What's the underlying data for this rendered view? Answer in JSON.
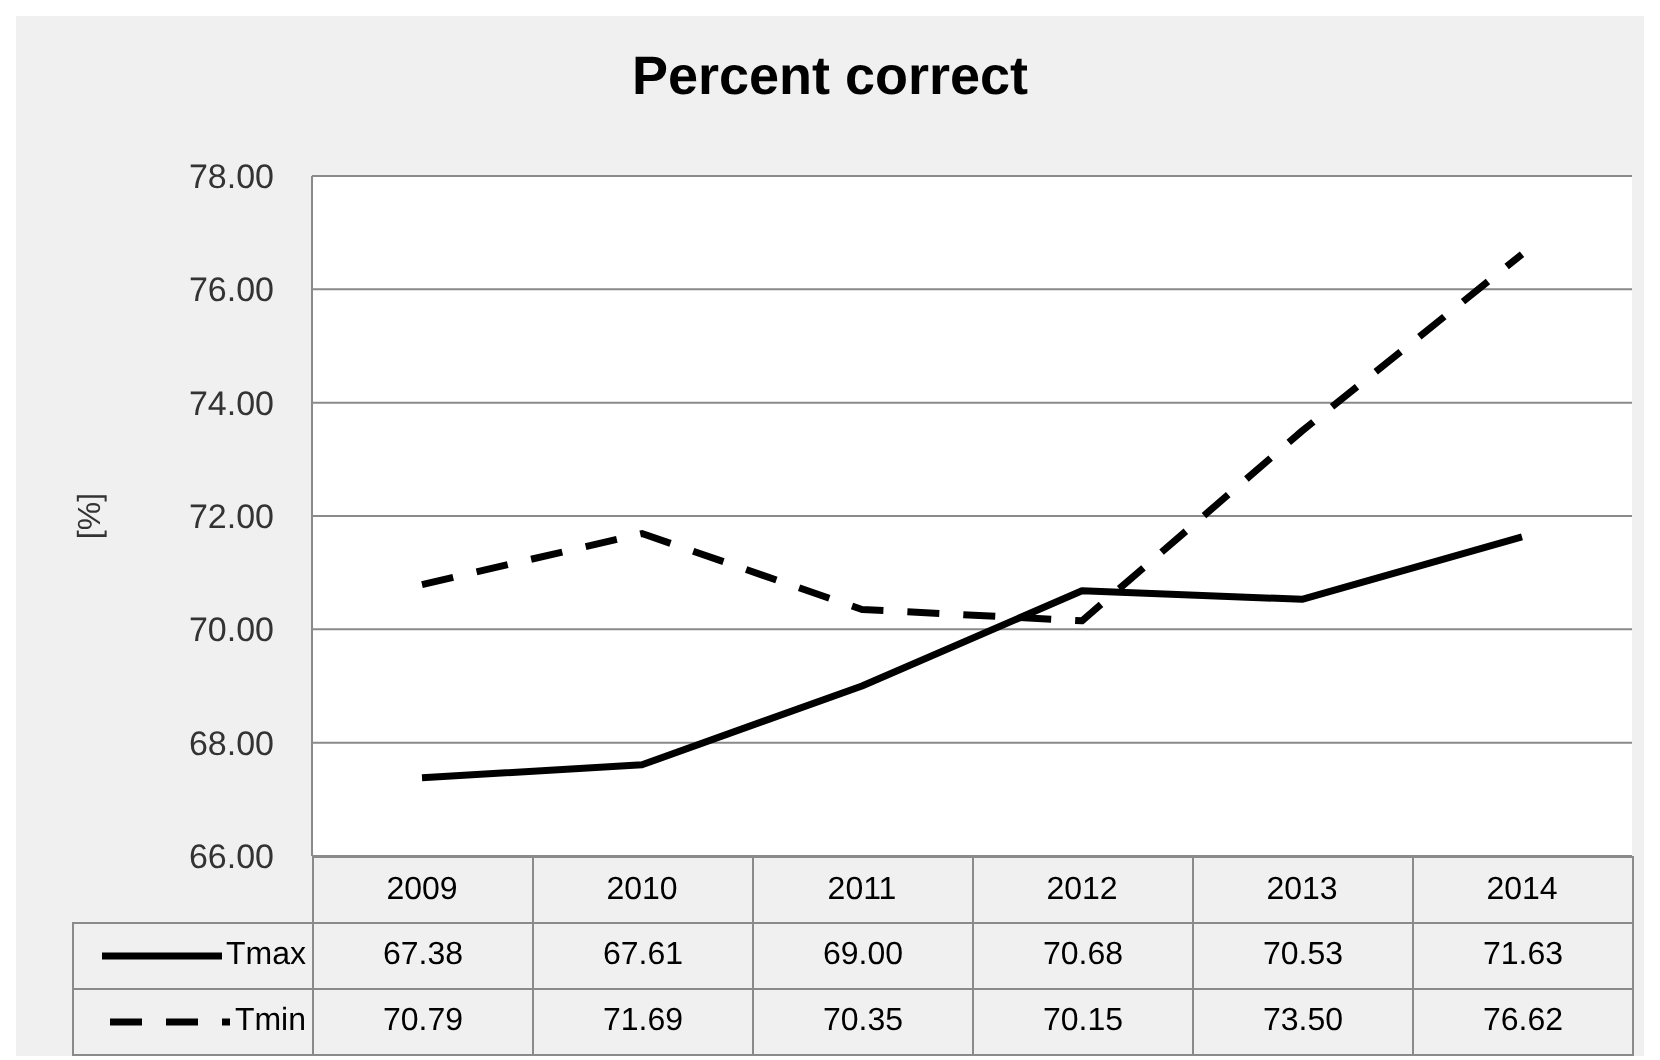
{
  "chart_data": {
    "type": "line",
    "title": "Percent correct",
    "ylabel": "[%]",
    "categories": [
      "2009",
      "2010",
      "2011",
      "2012",
      "2013",
      "2014"
    ],
    "series": [
      {
        "name": "Tmax",
        "color": "#000000",
        "line_style": "solid",
        "values": [
          67.38,
          67.61,
          69.0,
          70.68,
          70.53,
          71.63
        ],
        "value_labels": [
          "67.38",
          "67.61",
          "69.00",
          "70.68",
          "70.53",
          "71.63"
        ]
      },
      {
        "name": "Tmin",
        "color": "#000000",
        "line_style": "dashed",
        "values": [
          70.79,
          71.69,
          70.35,
          70.15,
          73.5,
          76.62
        ],
        "value_labels": [
          "70.79",
          "71.69",
          "70.35",
          "70.15",
          "73.50",
          "76.62"
        ]
      }
    ],
    "ylim": [
      66,
      78
    ],
    "yticks": [
      {
        "value": 66,
        "label": "66.00"
      },
      {
        "value": 68,
        "label": "68.00"
      },
      {
        "value": 70,
        "label": "70.00"
      },
      {
        "value": 72,
        "label": "72.00"
      },
      {
        "value": 74,
        "label": "74.00"
      },
      {
        "value": 76,
        "label": "76.00"
      },
      {
        "value": 78,
        "label": "78.00"
      }
    ],
    "grid": "y",
    "legend": "bottom"
  }
}
